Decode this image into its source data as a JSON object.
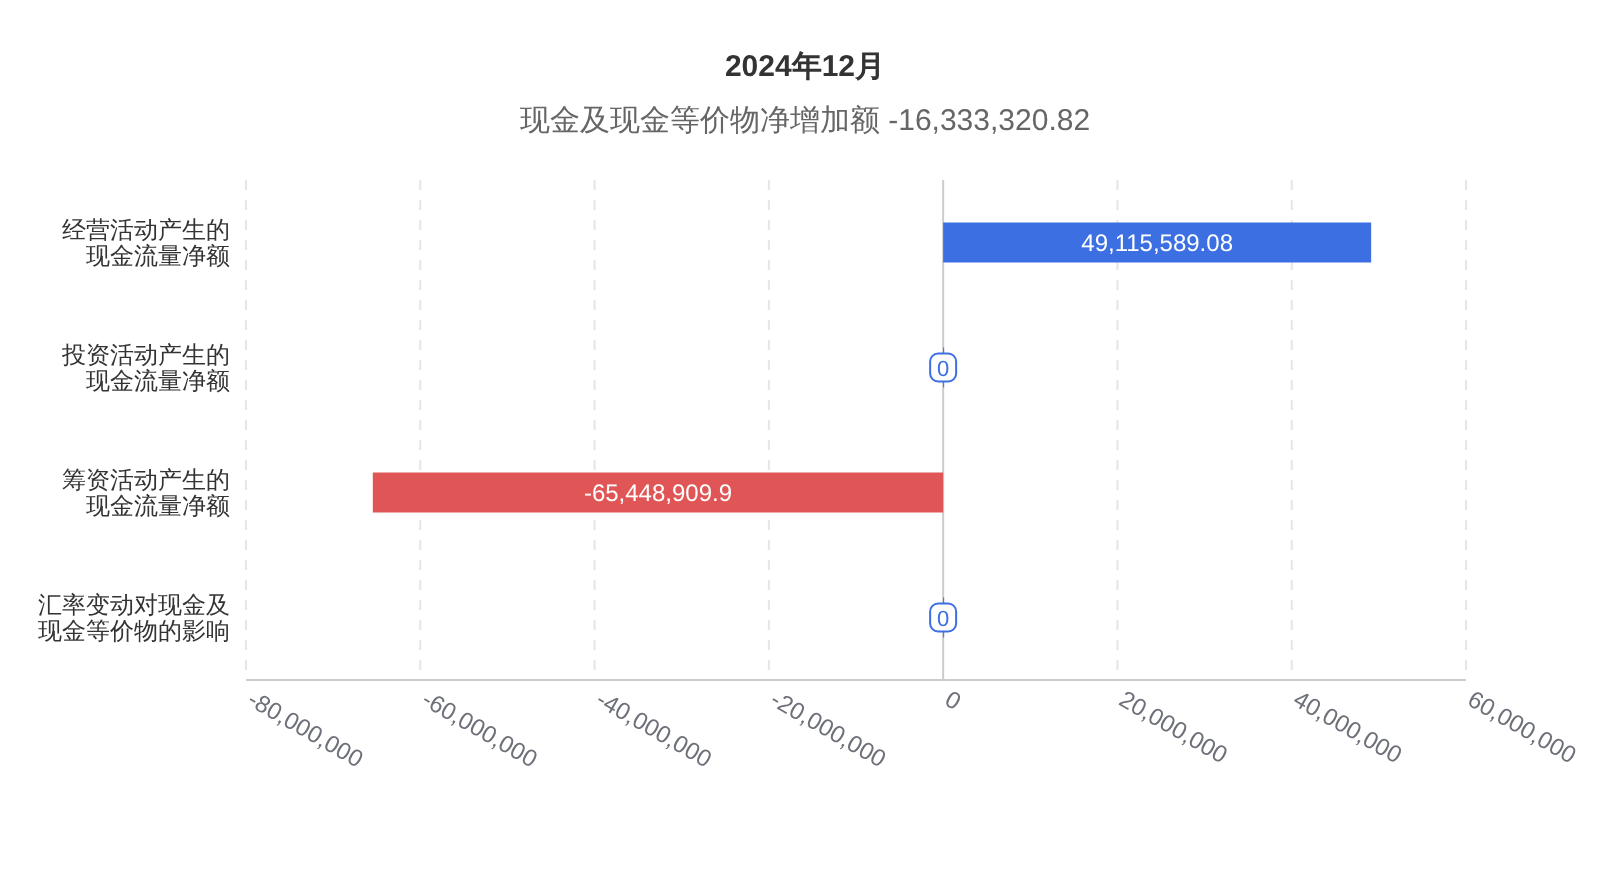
{
  "chart_data": {
    "type": "bar",
    "orientation": "horizontal",
    "title": "2024年12月",
    "subtitle": "现金及现金等价物净增加额 -16,333,320.82",
    "categories": [
      "经营活动产生的现金流量净额",
      "投资活动产生的现金流量净额",
      "筹资活动产生的现金流量净额",
      "汇率变动对现金及现金等价物的影响"
    ],
    "values": [
      49115589.08,
      0,
      -65448909.9,
      0
    ],
    "value_labels": [
      "49,115,589.08",
      "0",
      "-65,448,909.9",
      "0"
    ],
    "colors": [
      "#3c6fe2",
      "#3c6fe2",
      "#e05656",
      "#3c6fe2"
    ],
    "xlim": [
      -80000000,
      60000000
    ],
    "xticks": [
      {
        "value": -80000000,
        "label": "-80,000,000"
      },
      {
        "value": -60000000,
        "label": "-60,000,000"
      },
      {
        "value": -40000000,
        "label": "-40,000,000"
      },
      {
        "value": -20000000,
        "label": "-20,000,000"
      },
      0,
      {
        "value": 20000000,
        "label": "20,000,000"
      },
      {
        "value": 40000000,
        "label": "40,000,000"
      },
      {
        "value": 60000000,
        "label": "60,000,000"
      }
    ],
    "grid": "x"
  }
}
